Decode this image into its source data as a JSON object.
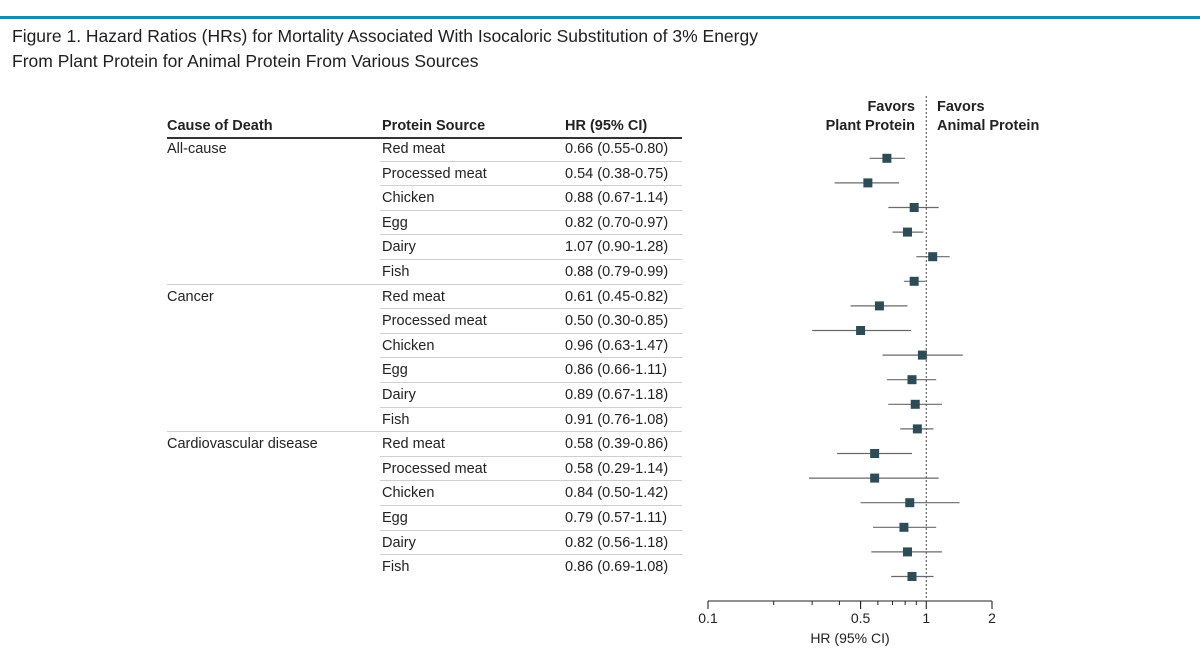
{
  "figure": {
    "title_line1": "Figure 1. Hazard Ratios (HRs) for Mortality Associated With Isocaloric Substitution of 3% Energy",
    "title_line2": "From Plant Protein for Animal Protein From Various Sources"
  },
  "table": {
    "headers": {
      "cause": "Cause of Death",
      "source": "Protein Source",
      "hr": "HR (95% CI)"
    }
  },
  "favors": {
    "left_line1": "Favors",
    "left_line2": "Plant Protein",
    "right_line1": "Favors",
    "right_line2": "Animal Protein"
  },
  "colors": {
    "accent": "#1a8aa7",
    "marker": "#2c4c57",
    "line": "#6a6a6a"
  },
  "chart_data": {
    "type": "forest",
    "xlabel": "HR (95% CI)",
    "xscale": "log",
    "xlim": [
      0.1,
      2
    ],
    "xticks": [
      0.1,
      0.5,
      1,
      2
    ],
    "xtick_labels": [
      "0.1",
      "0.5",
      "1",
      "2"
    ],
    "reference_line": 1,
    "groups": [
      {
        "name": "All-cause",
        "rows": [
          {
            "source": "Red meat",
            "hr": 0.66,
            "lo": 0.55,
            "hi": 0.8,
            "label": "0.66 (0.55-0.80)"
          },
          {
            "source": "Processed meat",
            "hr": 0.54,
            "lo": 0.38,
            "hi": 0.75,
            "label": "0.54 (0.38-0.75)"
          },
          {
            "source": "Chicken",
            "hr": 0.88,
            "lo": 0.67,
            "hi": 1.14,
            "label": "0.88 (0.67-1.14)"
          },
          {
            "source": "Egg",
            "hr": 0.82,
            "lo": 0.7,
            "hi": 0.97,
            "label": "0.82 (0.70-0.97)"
          },
          {
            "source": "Dairy",
            "hr": 1.07,
            "lo": 0.9,
            "hi": 1.28,
            "label": "1.07 (0.90-1.28)"
          },
          {
            "source": "Fish",
            "hr": 0.88,
            "lo": 0.79,
            "hi": 0.99,
            "label": "0.88 (0.79-0.99)"
          }
        ]
      },
      {
        "name": "Cancer",
        "rows": [
          {
            "source": "Red meat",
            "hr": 0.61,
            "lo": 0.45,
            "hi": 0.82,
            "label": "0.61 (0.45-0.82)"
          },
          {
            "source": "Processed meat",
            "hr": 0.5,
            "lo": 0.3,
            "hi": 0.85,
            "label": "0.50 (0.30-0.85)"
          },
          {
            "source": "Chicken",
            "hr": 0.96,
            "lo": 0.63,
            "hi": 1.47,
            "label": "0.96 (0.63-1.47)"
          },
          {
            "source": "Egg",
            "hr": 0.86,
            "lo": 0.66,
            "hi": 1.11,
            "label": "0.86 (0.66-1.11)"
          },
          {
            "source": "Dairy",
            "hr": 0.89,
            "lo": 0.67,
            "hi": 1.18,
            "label": "0.89 (0.67-1.18)"
          },
          {
            "source": "Fish",
            "hr": 0.91,
            "lo": 0.76,
            "hi": 1.08,
            "label": "0.91 (0.76-1.08)"
          }
        ]
      },
      {
        "name": "Cardiovascular disease",
        "rows": [
          {
            "source": "Red meat",
            "hr": 0.58,
            "lo": 0.39,
            "hi": 0.86,
            "label": "0.58 (0.39-0.86)"
          },
          {
            "source": "Processed meat",
            "hr": 0.58,
            "lo": 0.29,
            "hi": 1.14,
            "label": "0.58 (0.29-1.14)"
          },
          {
            "source": "Chicken",
            "hr": 0.84,
            "lo": 0.5,
            "hi": 1.42,
            "label": "0.84 (0.50-1.42)"
          },
          {
            "source": "Egg",
            "hr": 0.79,
            "lo": 0.57,
            "hi": 1.11,
            "label": "0.79 (0.57-1.11)"
          },
          {
            "source": "Dairy",
            "hr": 0.82,
            "lo": 0.56,
            "hi": 1.18,
            "label": "0.82 (0.56-1.18)"
          },
          {
            "source": "Fish",
            "hr": 0.86,
            "lo": 0.69,
            "hi": 1.08,
            "label": "0.86 (0.69-1.08)"
          }
        ]
      }
    ]
  }
}
